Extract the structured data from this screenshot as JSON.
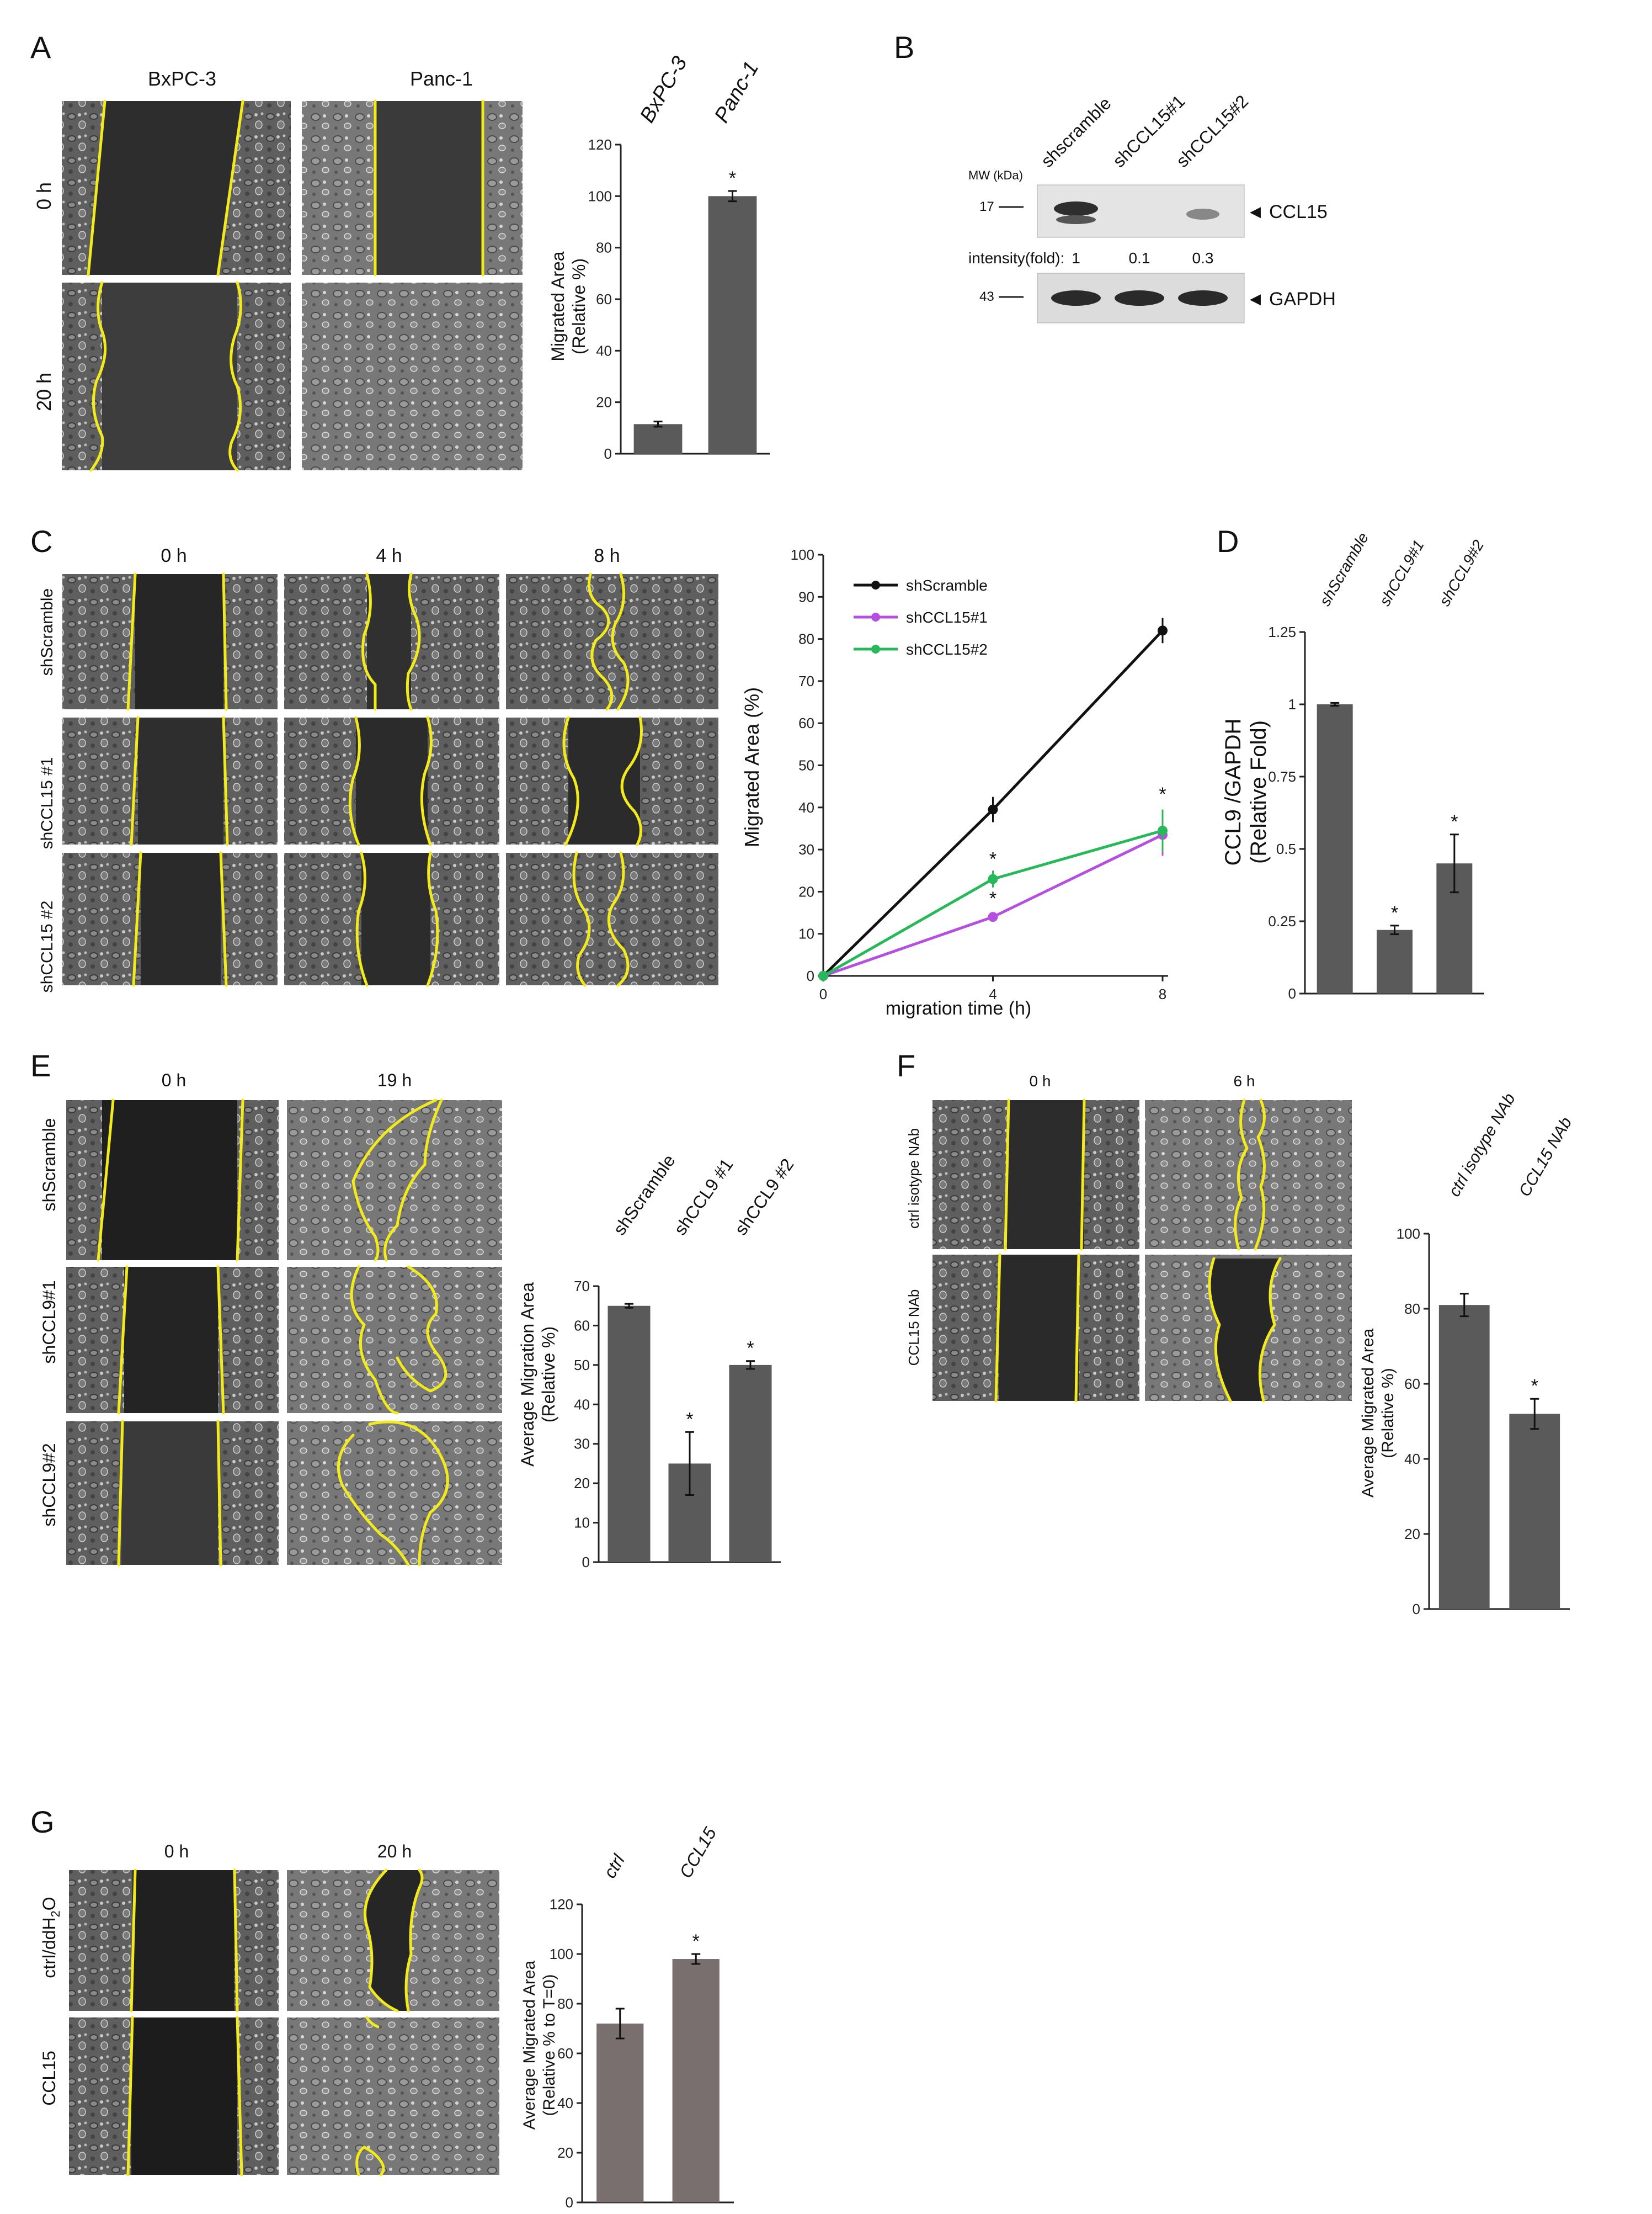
{
  "panel_letters": {
    "A": "A",
    "B": "B",
    "C": "C",
    "D": "D",
    "E": "E",
    "F": "F",
    "G": "G"
  },
  "panelA": {
    "columns": [
      "BxPC-3",
      "Panc-1"
    ],
    "rows": [
      "0 h",
      "20 h"
    ]
  },
  "panelB": {
    "lanes": [
      "shscramble",
      "shCCL15#1",
      "shCCL15#2"
    ],
    "mw_header": "MW (kDa)",
    "mw_17": "17",
    "mw_43": "43",
    "ccl15_label": "CCL15",
    "gapdh_label": "GAPDH",
    "intensity_label": "intensity(fold):",
    "intensities": [
      "1",
      "0.1",
      "0.3"
    ],
    "arrow": "◀"
  },
  "panelC": {
    "columns": [
      "0 h",
      "4 h",
      "8 h"
    ],
    "rows": [
      "shScramble",
      "shCCL15 #1",
      "shCCL15 #2"
    ]
  },
  "panelE": {
    "columns": [
      "0 h",
      "19 h"
    ],
    "rows": [
      "shScramble",
      "shCCL9#1",
      "shCCL9#2"
    ]
  },
  "panelF": {
    "columns": [
      "0 h",
      "6 h"
    ],
    "rows": [
      "ctrl isotype NAb",
      "CCL15 NAb"
    ]
  },
  "panelG": {
    "columns": [
      "0 h",
      "20 h"
    ],
    "rows": [
      "ctrl/ddH2O",
      "CCL15"
    ]
  },
  "colors": {
    "bar": "#5a5a5a",
    "bar_g": "#7a6f6f",
    "line_black": "#111111",
    "line_purple": "#b44fe0",
    "line_green": "#27b85a",
    "outline": "#f2ea1a"
  },
  "chart_data": [
    {
      "id": "A",
      "type": "bar",
      "categories": [
        "BxPC-3",
        "Panc-1"
      ],
      "values": [
        11.5,
        100
      ],
      "errors": [
        1,
        2
      ],
      "ylabel": "Migrated Area (Relative %)",
      "ylim": [
        0,
        120
      ],
      "yticks": [
        0,
        20,
        40,
        60,
        80,
        100,
        120
      ],
      "significance": [
        "",
        "*"
      ]
    },
    {
      "id": "C",
      "type": "line",
      "x": [
        0,
        4,
        8
      ],
      "xlabel": "migration time (h)",
      "ylabel": "Migrated Area (%)",
      "ylim": [
        0,
        100
      ],
      "yticks": [
        0,
        10,
        20,
        30,
        40,
        50,
        60,
        70,
        80,
        90,
        100
      ],
      "xticks": [
        0,
        4,
        8
      ],
      "series": [
        {
          "name": "shScramble",
          "values": [
            0,
            39.5,
            82
          ],
          "errors": [
            0,
            3,
            3
          ],
          "color": "#111111"
        },
        {
          "name": "shCCL15#1",
          "values": [
            0,
            14,
            33.5
          ],
          "errors": [
            0,
            1,
            5
          ],
          "color": "#b44fe0"
        },
        {
          "name": "shCCL15#2",
          "values": [
            0,
            23,
            34.5
          ],
          "errors": [
            0,
            2,
            5
          ],
          "color": "#27b85a"
        }
      ],
      "significance": [
        {
          "x": 4,
          "label": "*"
        },
        {
          "x": 4,
          "label": "*"
        },
        {
          "x": 8,
          "label": "*"
        }
      ]
    },
    {
      "id": "D",
      "type": "bar",
      "categories": [
        "shScramble",
        "shCCL9#1",
        "shCCL9#2"
      ],
      "values": [
        1,
        0.22,
        0.45
      ],
      "errors": [
        0.005,
        0.015,
        0.1
      ],
      "ylabel": "CCL9/GAPDH (Relative Fold)",
      "ylim": [
        0,
        1.25
      ],
      "yticks": [
        "0",
        "0.25",
        "0.5",
        "0.75",
        "1",
        "1.25"
      ],
      "significance": [
        "",
        "*",
        "*"
      ]
    },
    {
      "id": "E",
      "type": "bar",
      "categories": [
        "shScramble",
        "shCCL9 #1",
        "shCCL9 #2"
      ],
      "values": [
        65,
        25,
        50
      ],
      "errors": [
        0.5,
        8,
        1
      ],
      "ylabel": "Average Migration Area (Relative %)",
      "ylim": [
        0,
        70
      ],
      "yticks": [
        0,
        10,
        20,
        30,
        40,
        50,
        60,
        70
      ],
      "significance": [
        "",
        "*",
        "*"
      ]
    },
    {
      "id": "F",
      "type": "bar",
      "categories": [
        "ctrl isotype NAb",
        "CCL15 NAb"
      ],
      "values": [
        81,
        52
      ],
      "errors": [
        3,
        4
      ],
      "ylabel": "Average Migrated Area (Relative %)",
      "ylim": [
        0,
        100
      ],
      "yticks": [
        0,
        20,
        40,
        60,
        80,
        100
      ],
      "significance": [
        "",
        "*"
      ]
    },
    {
      "id": "G",
      "type": "bar",
      "categories": [
        "ctrl",
        "CCL15"
      ],
      "values": [
        72,
        98
      ],
      "errors": [
        6,
        2
      ],
      "ylabel": "Average Migrated Area (Relative % to T=0)",
      "ylim": [
        0,
        120
      ],
      "yticks": [
        0,
        20,
        40,
        60,
        80,
        100,
        120
      ],
      "significance": [
        "",
        "*"
      ]
    }
  ]
}
